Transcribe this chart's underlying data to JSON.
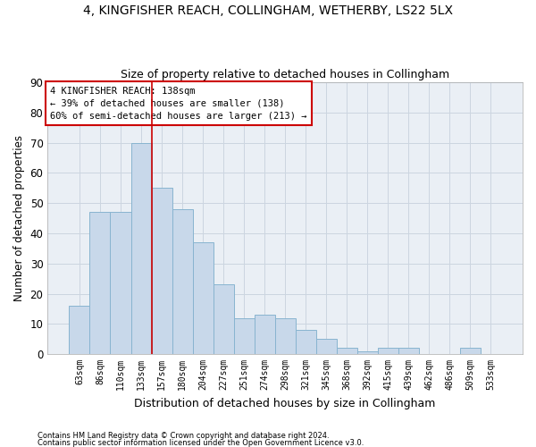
{
  "title1": "4, KINGFISHER REACH, COLLINGHAM, WETHERBY, LS22 5LX",
  "title2": "Size of property relative to detached houses in Collingham",
  "xlabel": "Distribution of detached houses by size in Collingham",
  "ylabel": "Number of detached properties",
  "footnote1": "Contains HM Land Registry data © Crown copyright and database right 2024.",
  "footnote2": "Contains public sector information licensed under the Open Government Licence v3.0.",
  "annotation_line1": "4 KINGFISHER REACH: 138sqm",
  "annotation_line2": "← 39% of detached houses are smaller (138)",
  "annotation_line3": "60% of semi-detached houses are larger (213) →",
  "bar_color": "#c8d8ea",
  "bar_edge_color": "#88b4d0",
  "marker_bin_index": 3,
  "categories": [
    "63sqm",
    "86sqm",
    "110sqm",
    "133sqm",
    "157sqm",
    "180sqm",
    "204sqm",
    "227sqm",
    "251sqm",
    "274sqm",
    "298sqm",
    "321sqm",
    "345sqm",
    "368sqm",
    "392sqm",
    "415sqm",
    "439sqm",
    "462sqm",
    "486sqm",
    "509sqm",
    "533sqm"
  ],
  "values": [
    16,
    47,
    47,
    70,
    55,
    48,
    37,
    23,
    12,
    13,
    12,
    8,
    5,
    2,
    1,
    2,
    2,
    0,
    0,
    2,
    0
  ],
  "ylim": [
    0,
    90
  ],
  "yticks": [
    0,
    10,
    20,
    30,
    40,
    50,
    60,
    70,
    80,
    90
  ],
  "grid_color": "#ccd5e0",
  "bg_color": "#eaeff5",
  "red_line_color": "#cc0000",
  "box_color": "#cc0000"
}
